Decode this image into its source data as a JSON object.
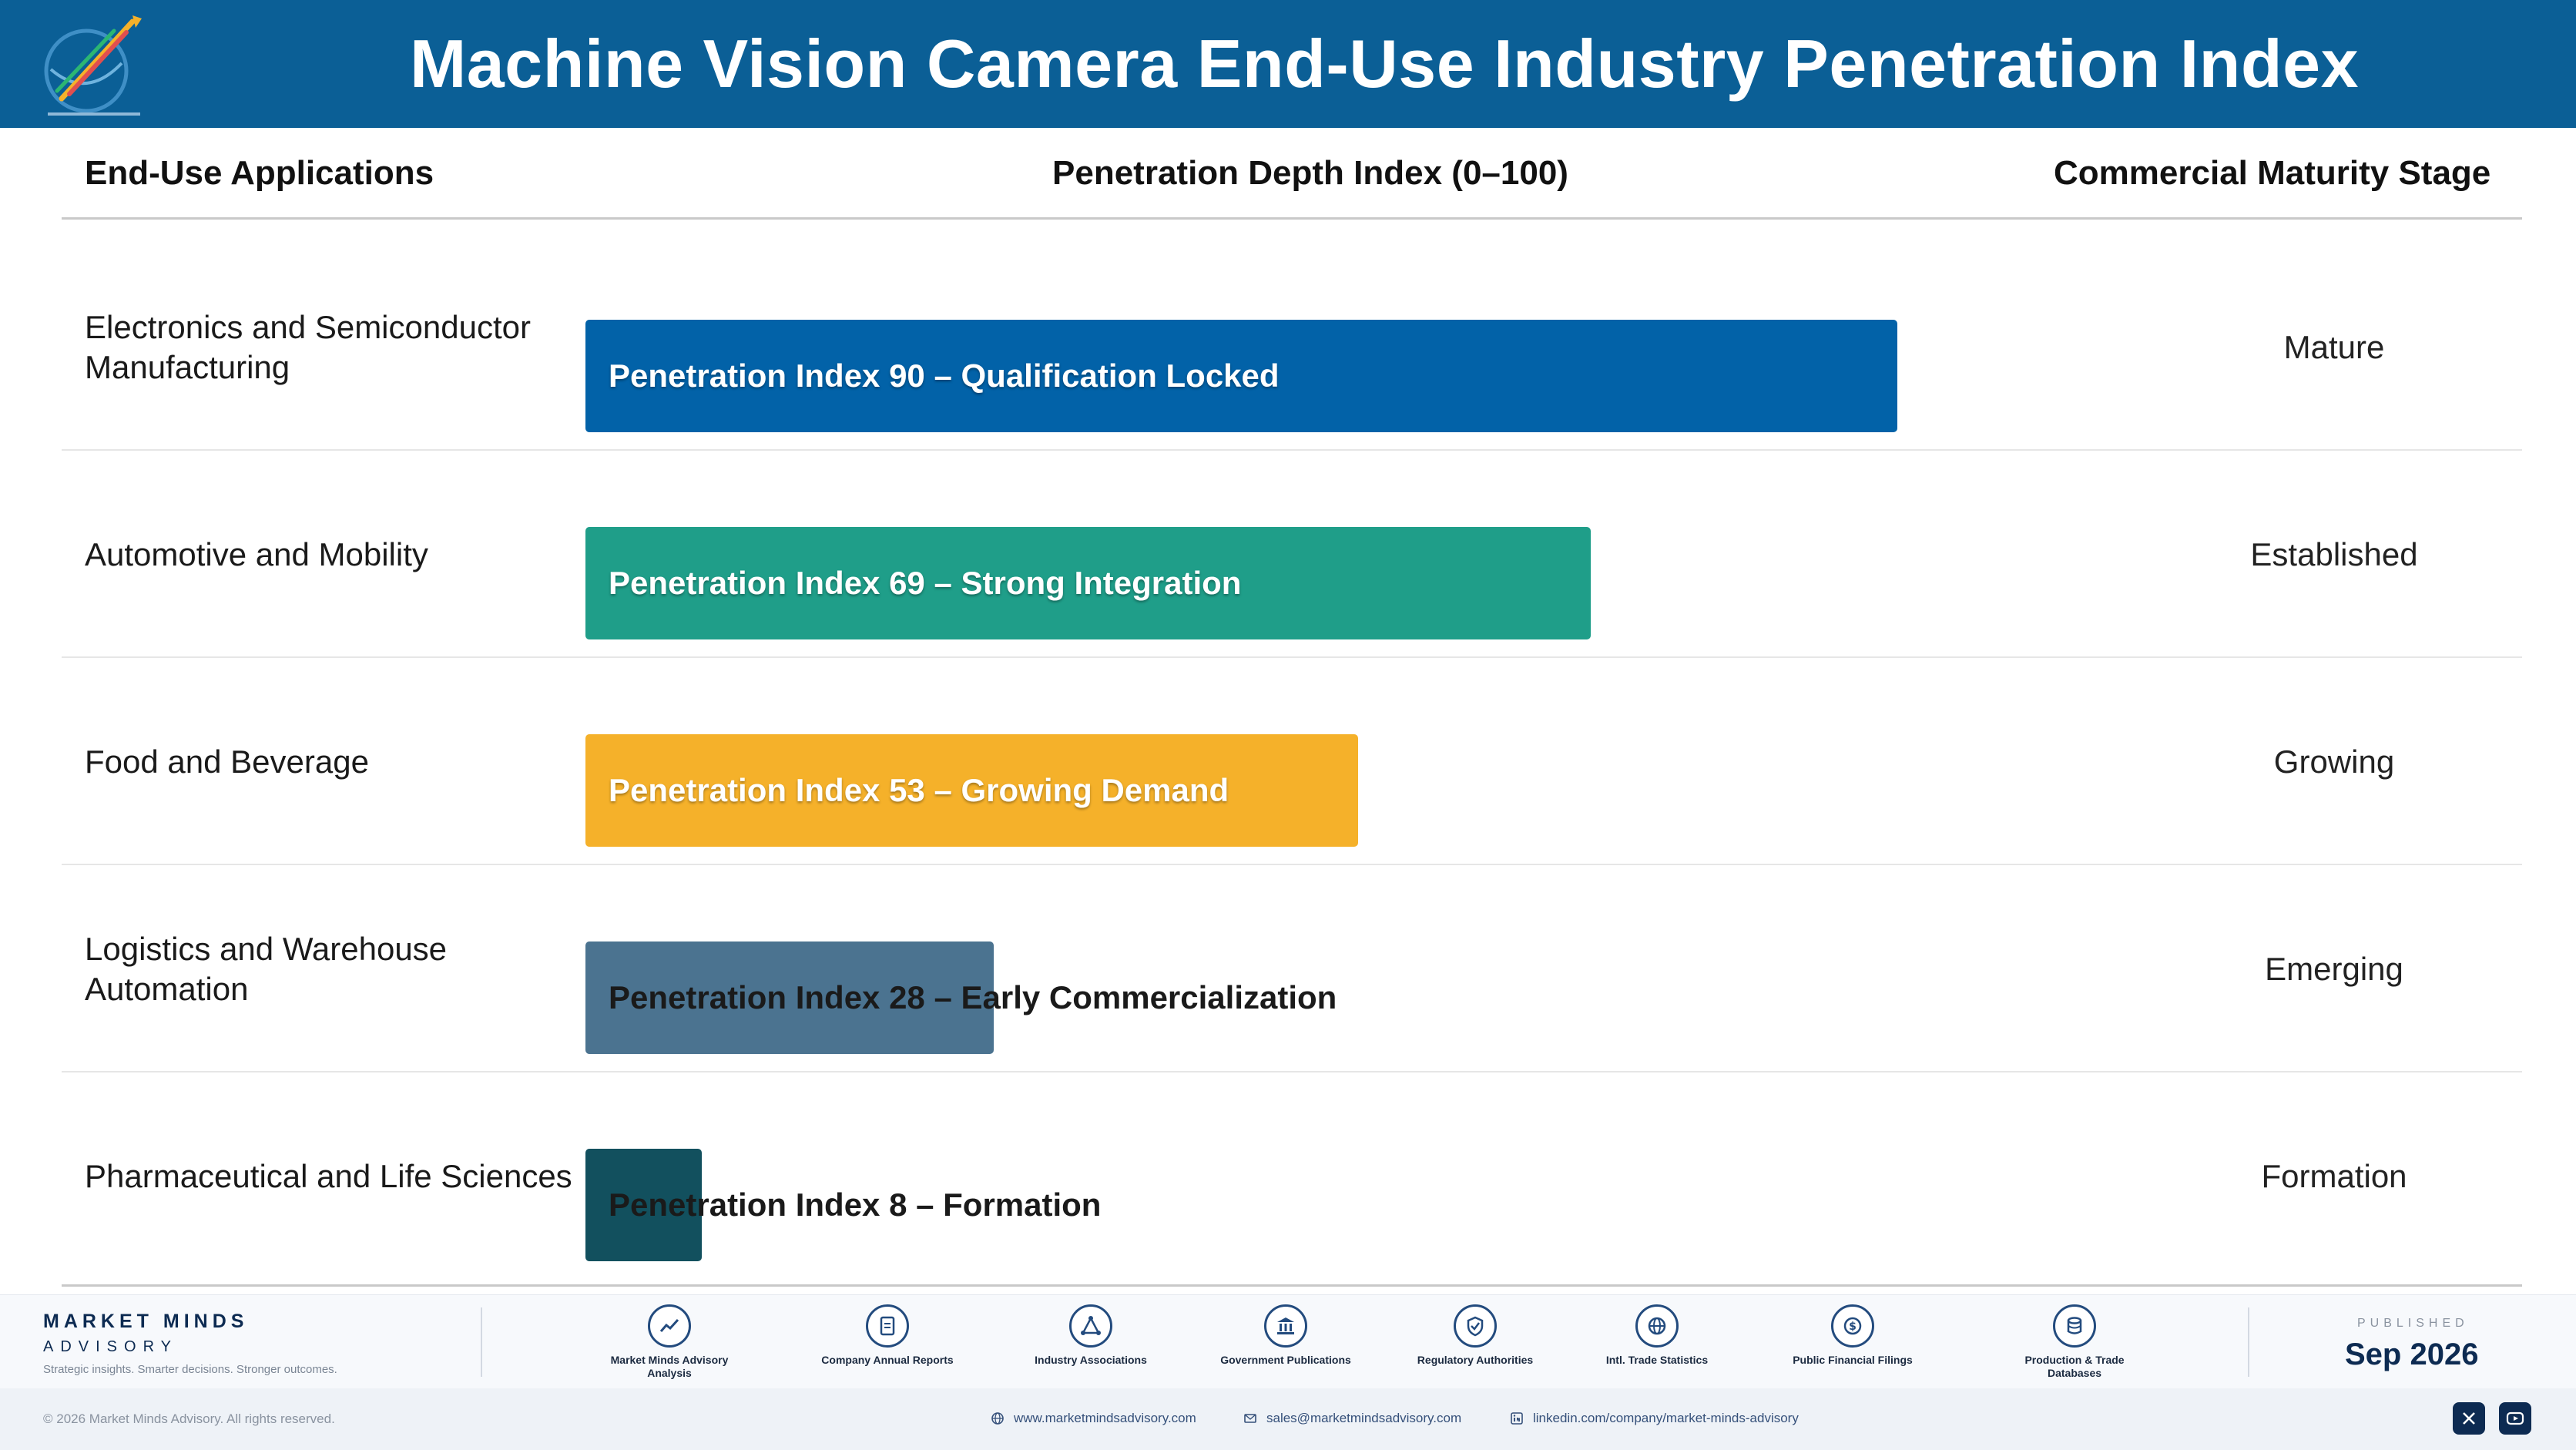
{
  "header": {
    "title": "Machine Vision Camera End-Use Industry Penetration Index"
  },
  "columns": {
    "applications": "End-Use Applications",
    "index": "Penetration Depth Index (0–100)",
    "stage": "Commercial Maturity Stage"
  },
  "chart_data": {
    "type": "bar",
    "orientation": "horizontal",
    "title": "Machine Vision Camera End-Use Industry Penetration Index",
    "xlabel": "Penetration Depth Index (0–100)",
    "ylabel": "End-Use Applications",
    "xlim": [
      0,
      100
    ],
    "grid": false,
    "categories": [
      "Electronics and Semiconductor Manufacturing",
      "Automotive and Mobility",
      "Food and Beverage",
      "Logistics and Warehouse Automation",
      "Pharmaceutical and Life Sciences"
    ],
    "values": [
      90,
      69,
      53,
      28,
      8
    ],
    "bar_labels": [
      "Penetration Index 90 – Qualification Locked",
      "Penetration Index 69 – Strong Integration",
      "Penetration Index 53 – Growing Demand",
      "Penetration Index 28 – Early Commercialization",
      "Penetration Index 8 – Formation"
    ],
    "stages": [
      "Mature",
      "Established",
      "Growing",
      "Emerging",
      "Formation"
    ],
    "colors": [
      "#0262a8",
      "#1f9e89",
      "#f5b12a",
      "#4b7390",
      "#12505e"
    ]
  },
  "footer": {
    "brand_name": "MARKET MINDS",
    "brand_sub": "ADVISORY",
    "tagline": "Strategic insights. Smarter decisions. Stronger outcomes.",
    "sources": [
      {
        "label": "Market Minds Advisory Analysis",
        "icon": "trend-chart-icon"
      },
      {
        "label": "Company Annual Reports",
        "icon": "document-icon"
      },
      {
        "label": "Industry Associations",
        "icon": "network-icon"
      },
      {
        "label": "Government Publications",
        "icon": "government-building-icon"
      },
      {
        "label": "Regulatory Authorities",
        "icon": "shield-check-icon"
      },
      {
        "label": "Intl. Trade Statistics",
        "icon": "globe-icon"
      },
      {
        "label": "Public Financial Filings",
        "icon": "dollar-coin-icon"
      },
      {
        "label": "Production & Trade Databases",
        "icon": "database-icon"
      }
    ],
    "published_label": "PUBLISHED",
    "published_date": "Sep 2026",
    "copyright": "© 2026 Market Minds Advisory. All rights reserved.",
    "website": "www.marketmindsadvisory.com",
    "email": "sales@marketmindsadvisory.com",
    "linkedin": "linkedin.com/company/market-minds-advisory"
  }
}
